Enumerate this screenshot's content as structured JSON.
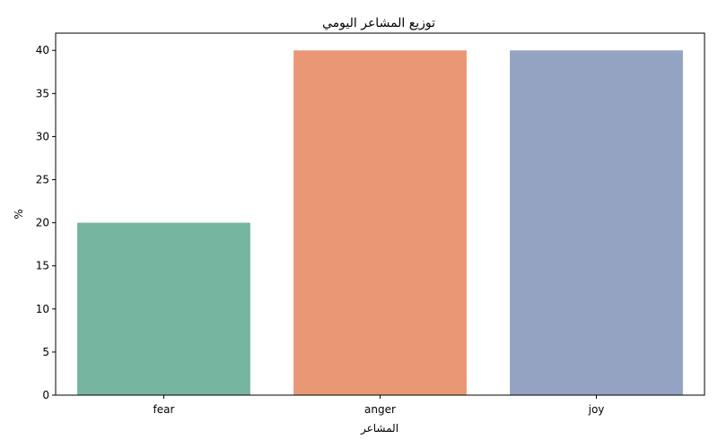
{
  "chart_data": {
    "type": "bar",
    "title": "توزيع المشاعر اليومي",
    "xlabel": "المشاعر",
    "ylabel": "%",
    "categories": [
      "fear",
      "anger",
      "joy"
    ],
    "values": [
      20,
      40,
      40
    ],
    "colors": [
      "#75b5a0",
      "#e99775",
      "#94a3c2"
    ],
    "ylim": [
      0,
      42
    ],
    "yticks": [
      0,
      5,
      10,
      15,
      20,
      25,
      30,
      35,
      40
    ],
    "grid": false,
    "legend": "none"
  }
}
